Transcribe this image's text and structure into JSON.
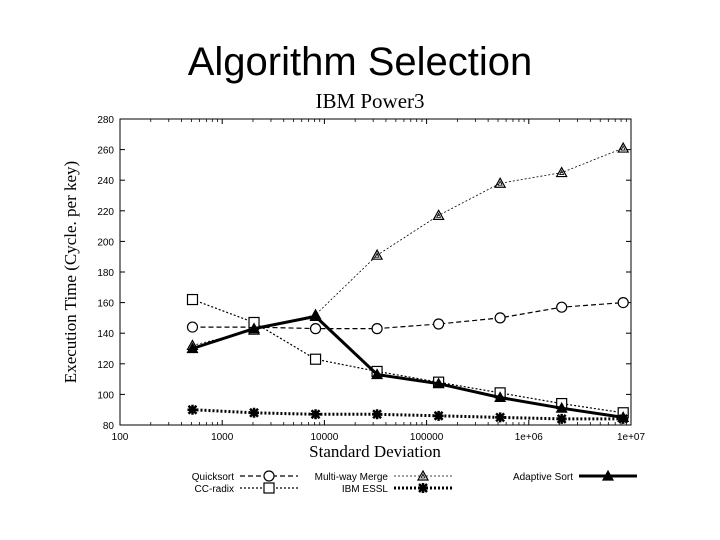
{
  "slide": {
    "title": "Algorithm Selection"
  },
  "chart_data": {
    "type": "line",
    "title": "IBM Power3",
    "xlabel": "Standard Deviation",
    "ylabel": "Execution Time (Cycle. per key)",
    "x_scale": "log",
    "xlim": [
      100,
      10000000
    ],
    "ylim": [
      80,
      280
    ],
    "x_ticks": [
      100,
      1000,
      10000,
      100000,
      1000000,
      10000000
    ],
    "x_tick_labels": [
      "100",
      "1000",
      "10000",
      "100000",
      "1e+06",
      "1e+07"
    ],
    "y_ticks": [
      80,
      100,
      120,
      140,
      160,
      180,
      200,
      220,
      240,
      260,
      280
    ],
    "y_tick_labels": [
      "80",
      "100",
      "120",
      "140",
      "160",
      "180",
      "200",
      "220",
      "240",
      "260",
      "280"
    ],
    "grid": false,
    "legend_position": "bottom",
    "x": [
      512,
      2048,
      8192,
      32768,
      131072,
      524288,
      2097152,
      8388608
    ],
    "series": [
      {
        "name": "Quicksort",
        "marker": "circle",
        "line": "dashed",
        "line_width": 1.2,
        "values": [
          144,
          144,
          143,
          143,
          146,
          150,
          157,
          160
        ]
      },
      {
        "name": "CC-radix",
        "marker": "square",
        "line": "dotted",
        "line_width": 1.2,
        "values": [
          162,
          147,
          123,
          115,
          108,
          101,
          94,
          88
        ]
      },
      {
        "name": "Multi-way Merge",
        "marker": "triangle-open",
        "line": "dotted",
        "line_width": 0.8,
        "values": [
          132,
          142,
          152,
          191,
          217,
          238,
          245,
          261
        ]
      },
      {
        "name": "IBM ESSL",
        "marker": "star",
        "line": "dotted",
        "line_width": 3,
        "values": [
          90,
          88,
          87,
          87,
          86,
          85,
          84,
          84
        ]
      },
      {
        "name": "Adaptive Sort",
        "marker": "triangle-filled",
        "line": "solid",
        "line_width": 3,
        "values": [
          130,
          143,
          151,
          113,
          107,
          98,
          91,
          85
        ]
      }
    ]
  }
}
